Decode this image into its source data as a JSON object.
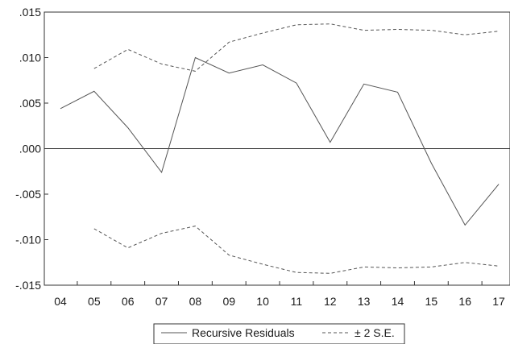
{
  "chart_data": {
    "type": "line",
    "categories": [
      "04",
      "05",
      "06",
      "07",
      "08",
      "09",
      "10",
      "11",
      "12",
      "13",
      "14",
      "15",
      "16",
      "17"
    ],
    "ylim": [
      -0.015,
      0.015
    ],
    "y_ticks": [
      ".015",
      ".010",
      ".005",
      ".000",
      "-.005",
      "-.010",
      "-.015"
    ],
    "y_tick_values": [
      0.015,
      0.01,
      0.005,
      0.0,
      -0.005,
      -0.01,
      -0.015
    ],
    "zero_line": true,
    "grid": false,
    "legend_position": "bottom",
    "series": [
      {
        "name": "Recursive Residuals",
        "style": "solid",
        "color": "#555555",
        "values": [
          0.0044,
          0.0063,
          0.0023,
          -0.0026,
          0.01,
          0.0083,
          0.0092,
          0.0072,
          0.0007,
          0.0071,
          0.0062,
          -0.0016,
          -0.0084,
          -0.0039
        ]
      },
      {
        "name": "± 2 S.E.",
        "style": "dashed",
        "color": "#555555",
        "values": [
          null,
          0.0088,
          0.0109,
          0.0093,
          0.0085,
          0.0117,
          0.0127,
          0.0136,
          0.0137,
          0.013,
          0.0131,
          0.013,
          0.0125,
          0.0129
        ]
      },
      {
        "name": "± 2 S.E.",
        "style": "dashed",
        "color": "#555555",
        "values": [
          null,
          -0.0088,
          -0.0109,
          -0.0093,
          -0.0085,
          -0.0117,
          -0.0127,
          -0.0136,
          -0.0137,
          -0.013,
          -0.0131,
          -0.013,
          -0.0125,
          -0.0129
        ]
      }
    ]
  },
  "legend": {
    "items": [
      {
        "label": "Recursive Residuals",
        "style": "solid"
      },
      {
        "label": "± 2 S.E.",
        "style": "dashed"
      }
    ]
  }
}
